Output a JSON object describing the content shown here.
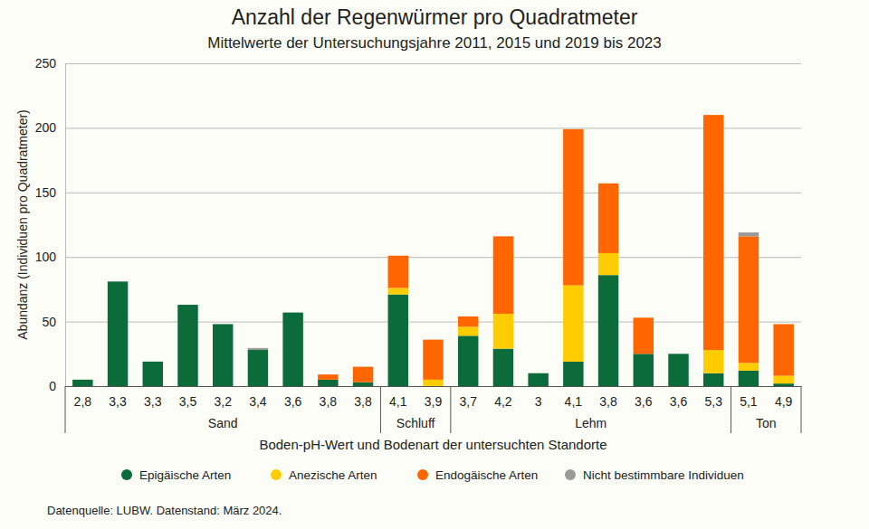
{
  "chart_data": {
    "type": "bar",
    "stacked": true,
    "title": "Anzahl der Regenwürmer pro Quadratmeter",
    "subtitle": "Mittelwerte der Untersuchungsjahre 2011, 2015 und 2019 bis 2023",
    "y_label": "Abundanz (Individuen pro Quadratmeter)",
    "x_label": "Boden-pH-Wert und Bodenart der untersuchten Standorte",
    "source": "Datenquelle: LUBW. Datenstand: März 2024.",
    "categories": [
      "2,8",
      "3,3",
      "3,3",
      "3,5",
      "3,2",
      "3,4",
      "3,6",
      "3,8",
      "3,8",
      "4,1",
      "3,9",
      "3,7",
      "4,2",
      "3",
      "4,1",
      "3,8",
      "3,6",
      "3,6",
      "5,3",
      "5,1",
      "4,9"
    ],
    "category_groups": [
      "Sand",
      "Sand",
      "Sand",
      "Sand",
      "Sand",
      "Sand",
      "Sand",
      "Sand",
      "Sand",
      "Schluff",
      "Schluff",
      "Lehm",
      "Lehm",
      "Lehm",
      "Lehm",
      "Lehm",
      "Lehm",
      "Lehm",
      "Lehm",
      "Ton",
      "Ton"
    ],
    "series": [
      {
        "name": "Epigäische Arten",
        "color": "#0b6b3a",
        "values": [
          5,
          81,
          19,
          63,
          48,
          28,
          57,
          5,
          3,
          71,
          0,
          39,
          29,
          10,
          19,
          86,
          25,
          25,
          10,
          12,
          2
        ]
      },
      {
        "name": "Anezische Arten",
        "color": "#ffcc00",
        "values": [
          0,
          0,
          0,
          0,
          0,
          0,
          0,
          0,
          0,
          5,
          5,
          7,
          27,
          0,
          59,
          17,
          0,
          0,
          18,
          6,
          6
        ]
      },
      {
        "name": "Endogäische Arten",
        "color": "#ff6600",
        "values": [
          0,
          0,
          0,
          0,
          0,
          0,
          0,
          4,
          12,
          25,
          31,
          8,
          60,
          0,
          121,
          54,
          28,
          0,
          182,
          98,
          40
        ]
      },
      {
        "name": "Nicht bestimmbare Individuen",
        "color": "#9a9a9a",
        "values": [
          0,
          0,
          0,
          0,
          0,
          1.5,
          0,
          0,
          0,
          0,
          0,
          0,
          0,
          0,
          0,
          0,
          0,
          0,
          0,
          3,
          0
        ]
      }
    ],
    "ylim": [
      0,
      250
    ],
    "yticks": [
      0,
      50,
      100,
      150,
      200,
      250
    ],
    "grid": true,
    "legend": "bottom"
  }
}
